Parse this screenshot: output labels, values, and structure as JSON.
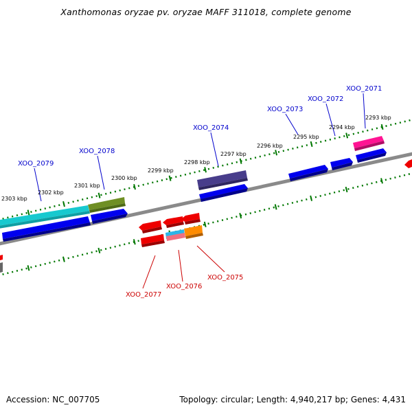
{
  "title": "Xanthomonas oryzae pv. oryzae MAFF 311018, complete genome",
  "footer": {
    "accession": "Accession: NC_007705",
    "summary": "Topology: circular; Length: 4,940,217 bp; Genes: 4,431"
  },
  "ruler_labels": [
    "2303 kbp",
    "2302 kbp",
    "2301 kbp",
    "2300 kbp",
    "2299 kbp",
    "2298 kbp",
    "2297 kbp",
    "2296 kbp",
    "2295 kbp",
    "2294 kbp",
    "2293 kbp"
  ],
  "gene_labels_top": [
    "XOO_2079",
    "XOO_2078",
    "XOO_2074",
    "XOO_2073",
    "XOO_2072",
    "XOO_2071"
  ],
  "gene_labels_bottom": [
    "XOO_2077",
    "XOO_2076",
    "XOO_2075"
  ],
  "colors": {
    "forward_gene": "#0000ee",
    "reverse_gene": "#ee0000",
    "backbone": "#808080",
    "ruler_tick": "#007700",
    "label_top": "#0000cc",
    "label_bottom": "#cc0000"
  }
}
